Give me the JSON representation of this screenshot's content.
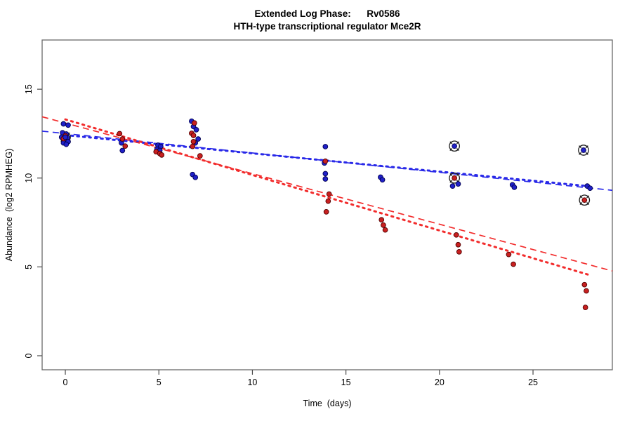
{
  "title": {
    "line1": "Extended Log Phase:      Rv0586",
    "line2": "HTH-type transcriptional regulator Mce2R"
  },
  "chart_data": {
    "type": "scatter",
    "title": "Extended Log Phase: Rv0586 — HTH-type transcriptional regulator Mce2R",
    "xlabel": "Time  (days)",
    "ylabel": "Abundance  (log2 RPMHEG)",
    "xlim": [
      -1.24,
      29.24
    ],
    "ylim": [
      -0.79,
      17.77
    ],
    "x_ticks": [
      0,
      5,
      10,
      15,
      20,
      25
    ],
    "y_ticks": [
      0,
      5,
      10,
      15
    ],
    "grid": "off",
    "legend": "none",
    "colors": {
      "blue_point_fill": "#2020C8",
      "blue_point_edge": "#000050",
      "red_point_fill": "#C82020",
      "red_point_edge": "#500000",
      "blue_line": "#2828E8",
      "red_line": "#F22C2C",
      "flag_ring": "#1a1a1a",
      "axis": "#4a4a4a",
      "box": "#6a6a6a",
      "text": "#000000"
    },
    "series": [
      {
        "name": "blue-replicate",
        "color_key": "blue",
        "points": [
          [
            -0.1,
            13.05
          ],
          [
            0.15,
            12.98
          ],
          [
            -0.15,
            12.55
          ],
          [
            0.05,
            12.48
          ],
          [
            -0.2,
            12.3
          ],
          [
            0.1,
            12.28
          ],
          [
            -0.05,
            12.15
          ],
          [
            0.15,
            12.05
          ],
          [
            -0.1,
            11.98
          ],
          [
            0.05,
            11.9
          ],
          [
            3.0,
            11.98
          ],
          [
            3.05,
            11.55
          ],
          [
            4.95,
            11.85
          ],
          [
            5.1,
            11.78
          ],
          [
            4.9,
            11.62
          ],
          [
            5.05,
            11.55
          ],
          [
            6.75,
            13.2
          ],
          [
            6.85,
            12.9
          ],
          [
            7.0,
            12.72
          ],
          [
            7.1,
            12.2
          ],
          [
            6.95,
            11.98
          ],
          [
            6.8,
            10.2
          ],
          [
            6.95,
            10.04
          ],
          [
            13.9,
            11.77
          ],
          [
            13.85,
            10.85
          ],
          [
            13.9,
            10.25
          ],
          [
            13.9,
            9.95
          ],
          [
            16.85,
            10.05
          ],
          [
            16.95,
            9.9
          ],
          [
            21.0,
            9.67
          ],
          [
            20.7,
            9.55
          ],
          [
            23.9,
            9.62
          ],
          [
            24.0,
            9.48
          ],
          [
            27.9,
            9.55
          ],
          [
            28.05,
            9.43
          ]
        ]
      },
      {
        "name": "red-replicate",
        "color_key": "red",
        "points": [
          [
            0.0,
            12.38
          ],
          [
            -0.1,
            12.22
          ],
          [
            2.9,
            12.5
          ],
          [
            3.05,
            12.2
          ],
          [
            3.2,
            11.8
          ],
          [
            4.85,
            11.48
          ],
          [
            5.05,
            11.38
          ],
          [
            5.15,
            11.3
          ],
          [
            6.9,
            13.1
          ],
          [
            6.75,
            12.52
          ],
          [
            6.85,
            12.4
          ],
          [
            6.85,
            12.05
          ],
          [
            6.8,
            11.78
          ],
          [
            7.2,
            11.25
          ],
          [
            13.9,
            10.95
          ],
          [
            14.1,
            9.1
          ],
          [
            14.05,
            8.7
          ],
          [
            13.95,
            8.1
          ],
          [
            16.9,
            7.65
          ],
          [
            17.0,
            7.35
          ],
          [
            17.1,
            7.08
          ],
          [
            20.9,
            6.8
          ],
          [
            21.0,
            6.25
          ],
          [
            21.05,
            5.85
          ],
          [
            23.7,
            5.7
          ],
          [
            23.95,
            5.15
          ],
          [
            27.75,
            4.0
          ],
          [
            27.85,
            3.65
          ],
          [
            27.8,
            2.72
          ]
        ]
      }
    ],
    "flagged_points": [
      {
        "day": 0.0,
        "value": 12.3,
        "series": "blue"
      },
      {
        "day": 20.8,
        "value": 11.8,
        "series": "blue"
      },
      {
        "day": 20.8,
        "value": 10.0,
        "series": "red"
      },
      {
        "day": 27.7,
        "value": 11.57,
        "series": "blue"
      },
      {
        "day": 27.75,
        "value": 8.76,
        "series": "red"
      }
    ],
    "trend_lines": [
      {
        "name": "blue-dashed-fit",
        "color_key": "blue",
        "style": "dashed",
        "x1": -1.24,
        "v1": 12.64,
        "x2": 29.24,
        "v2": 9.31
      },
      {
        "name": "blue-dotted-fit",
        "color_key": "blue",
        "style": "dotted",
        "x1": 0.0,
        "v1": 12.42,
        "x2": 28.0,
        "v2": 9.54
      },
      {
        "name": "red-dashed-fit",
        "color_key": "red",
        "style": "dashed",
        "x1": -1.24,
        "v1": 13.45,
        "x2": 29.24,
        "v2": 4.77
      },
      {
        "name": "red-dotted-fit",
        "color_key": "red",
        "style": "dotted",
        "x1": 0.0,
        "v1": 13.3,
        "x2": 28.0,
        "v2": 4.55
      }
    ]
  }
}
